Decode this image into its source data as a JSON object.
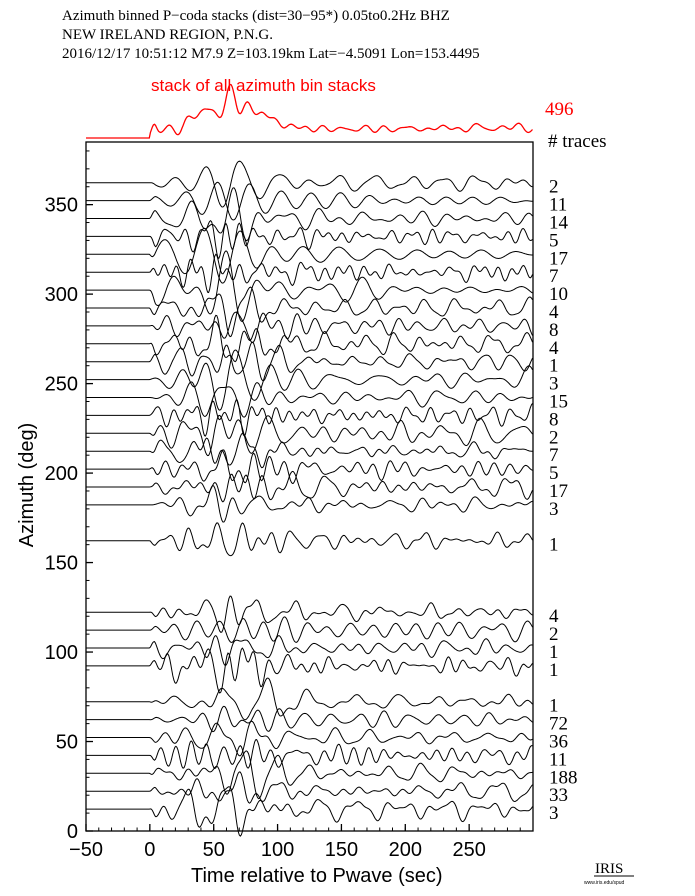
{
  "header": {
    "line1": "Azimuth binned P−coda stacks (dist=30−95*)  0.05to0.2Hz  BHZ",
    "line2": "NEW IRELAND REGION, P.N.G.",
    "line3": "2016/12/17  10:51:12  M7.9  Z=103.19km Lat=−4.5091 Lon=153.4495"
  },
  "stack": {
    "title": "stack of all azimuth bin stacks",
    "count": "496",
    "color": "#ff0000"
  },
  "traces_label": "# traces",
  "logo": {
    "text": "IRIS",
    "subtext": "www.iris.edu/spud"
  },
  "chart_data": {
    "type": "line",
    "xlabel": "Time relative to Pwave (sec)",
    "ylabel": "Azimuth (deg)",
    "xlim": [
      -50,
      300
    ],
    "ylim": [
      0,
      385
    ],
    "x_ticks": [
      -50,
      0,
      50,
      100,
      150,
      200,
      250
    ],
    "y_ticks": [
      0,
      50,
      100,
      150,
      200,
      250,
      300,
      350
    ],
    "series": [
      {
        "azimuth": 360,
        "count": "2"
      },
      {
        "azimuth": 350,
        "count": "11"
      },
      {
        "azimuth": 340,
        "count": "14"
      },
      {
        "azimuth": 330,
        "count": "5"
      },
      {
        "azimuth": 320,
        "count": "17"
      },
      {
        "azimuth": 310,
        "count": "7"
      },
      {
        "azimuth": 300,
        "count": "10"
      },
      {
        "azimuth": 290,
        "count": "4"
      },
      {
        "azimuth": 280,
        "count": "8"
      },
      {
        "azimuth": 270,
        "count": "4"
      },
      {
        "azimuth": 260,
        "count": "1"
      },
      {
        "azimuth": 250,
        "count": "3"
      },
      {
        "azimuth": 240,
        "count": "15"
      },
      {
        "azimuth": 230,
        "count": "8"
      },
      {
        "azimuth": 220,
        "count": "2"
      },
      {
        "azimuth": 210,
        "count": "7"
      },
      {
        "azimuth": 200,
        "count": "5"
      },
      {
        "azimuth": 190,
        "count": "17"
      },
      {
        "azimuth": 180,
        "count": "3"
      },
      {
        "azimuth": 160,
        "count": "1"
      },
      {
        "azimuth": 120,
        "count": "4"
      },
      {
        "azimuth": 110,
        "count": "2"
      },
      {
        "azimuth": 100,
        "count": "1"
      },
      {
        "azimuth": 90,
        "count": "1"
      },
      {
        "azimuth": 70,
        "count": "1"
      },
      {
        "azimuth": 60,
        "count": "72"
      },
      {
        "azimuth": 50,
        "count": "36"
      },
      {
        "azimuth": 40,
        "count": "11"
      },
      {
        "azimuth": 30,
        "count": "188"
      },
      {
        "azimuth": 20,
        "count": "33"
      },
      {
        "azimuth": 10,
        "count": "3"
      }
    ]
  }
}
